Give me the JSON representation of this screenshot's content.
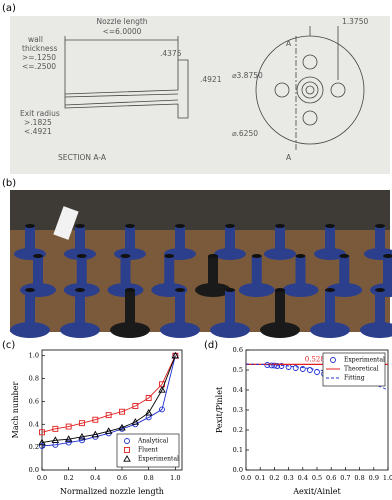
{
  "panel_labels": [
    "(a)",
    "(b)",
    "(c)",
    "(d)"
  ],
  "drawing": {
    "nozzle_length": "Nozzle length",
    "nozzle_length_limit": "<=6.0000",
    "wall": "wall",
    "thickness": "thickness",
    "wall_min": ">=.1250",
    "wall_max": "<=.2500",
    "flange_width": ".4375",
    "flange_height": ".4921",
    "exit_radius": "Exit radius",
    "exit_min": ">.1825",
    "exit_max": "<.4921",
    "section": "SECTION A-A",
    "hole_offset": "1.3750",
    "cut_top": "A",
    "cut_bottom": "A",
    "outer_dia": "⌀3.8750",
    "hole_dia": "⌀.6250"
  },
  "chart_data": [
    {
      "type": "line",
      "x_label": "Normalized nozzle length",
      "y_label": "Mach number",
      "x": [
        0,
        0.1,
        0.2,
        0.3,
        0.4,
        0.5,
        0.6,
        0.7,
        0.8,
        0.9,
        1
      ],
      "series": [
        {
          "name": "Analytical",
          "color": "#1f2fd0",
          "marker": "circle",
          "style": "line-markers",
          "values": [
            0.21,
            0.22,
            0.24,
            0.26,
            0.29,
            0.32,
            0.36,
            0.4,
            0.46,
            0.53,
            1
          ]
        },
        {
          "name": "Fluent",
          "color": "#e02020",
          "marker": "square",
          "style": "line-markers",
          "values": [
            0.33,
            0.36,
            0.38,
            0.41,
            0.44,
            0.48,
            0.51,
            0.56,
            0.63,
            0.75,
            1
          ]
        },
        {
          "name": "Experimental",
          "color": "#000000",
          "marker": "triangle",
          "style": "line-markers",
          "values": [
            0.24,
            0.26,
            0.27,
            0.29,
            0.31,
            0.34,
            0.37,
            0.42,
            0.5,
            0.7,
            1
          ]
        }
      ],
      "xlim": [
        0,
        1.05
      ],
      "xticks": [
        {
          "value": 0,
          "label": "0.0"
        },
        0.2,
        0.4,
        0.6,
        0.8,
        {
          "value": 1,
          "label": "1.0"
        }
      ],
      "ylim": [
        0,
        1.05
      ],
      "yticks": [
        {
          "value": 0,
          "label": "0.0"
        },
        0.2,
        0.4,
        0.6,
        0.8,
        {
          "value": 1,
          "label": "1.0"
        }
      ],
      "legend": "lower-right",
      "grid": false
    },
    {
      "type": "scatter",
      "x_label": "Aexit/Ainlet",
      "y_label": "Pexit/Pinlet",
      "series": [
        {
          "name": "Experimental",
          "color": "#1f2fd0",
          "marker": "circle",
          "style": "markers",
          "x": [
            0.15,
            0.18,
            0.2,
            0.22,
            0.25,
            0.3,
            0.35,
            0.4,
            0.45,
            0.5,
            0.55,
            0.6,
            0.65
          ],
          "values": [
            0.525,
            0.523,
            0.522,
            0.52,
            0.52,
            0.515,
            0.51,
            0.505,
            0.5,
            0.49,
            0.48,
            0.47,
            0.46
          ]
        },
        {
          "name": "Theoretical",
          "color": "#e02020",
          "style": "line",
          "x": [
            0,
            1
          ],
          "values": [
            0.5283,
            0.5283
          ],
          "value_labels": [
            "0.5283",
            null
          ]
        },
        {
          "name": "Fitting",
          "color": "#1f2fd0",
          "style": "dashed",
          "x": [
            0,
            0.1,
            0.2,
            0.3,
            0.4,
            0.5,
            0.6,
            0.7,
            0.8,
            0.9,
            1
          ],
          "values": [
            0.53,
            0.528,
            0.525,
            0.52,
            0.512,
            0.502,
            0.49,
            0.475,
            0.455,
            0.43,
            0.4
          ]
        }
      ],
      "xlim": [
        0,
        1
      ],
      "xticks": [
        {
          "value": 0,
          "label": "0.0"
        },
        0.1,
        0.2,
        0.3,
        0.4,
        0.5,
        0.6,
        0.7,
        0.8,
        0.9,
        {
          "value": 1,
          "label": "1.0"
        }
      ],
      "ylim": [
        0,
        0.6
      ],
      "yticks": [
        {
          "value": 0,
          "label": "0.0"
        },
        0.1,
        0.2,
        0.3,
        0.4,
        0.5,
        0.6
      ],
      "legend": "upper-right",
      "grid": false
    }
  ]
}
